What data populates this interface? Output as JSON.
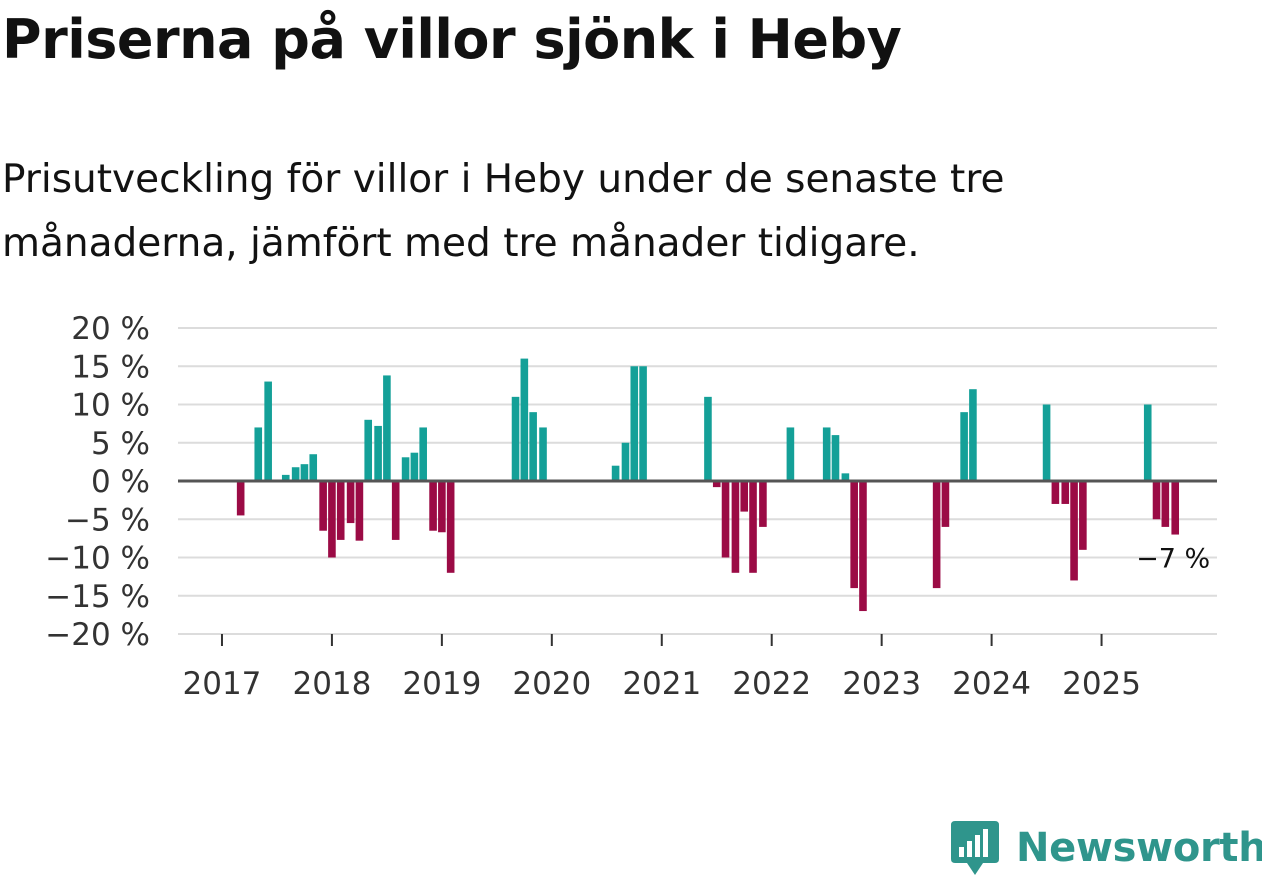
{
  "title": "Priserna på villor sjönk i Heby",
  "subtitle": "Prisutveckling för villor i Heby under de senaste tre månaderna, jämfört med tre månader tidigare.",
  "brand": {
    "name": "Newsworthy"
  },
  "colors": {
    "positive": "#14a098",
    "negative": "#9b0b45",
    "grid": "#dcdcdc",
    "zero": "#555555"
  },
  "chart_data": {
    "type": "bar",
    "x_unit": "decimal year",
    "xlim": [
      2016.6,
      2026.05
    ],
    "ylim": [
      -20,
      20
    ],
    "yticks": [
      {
        "value": 20,
        "label": "20 %"
      },
      {
        "value": 15,
        "label": "15 %"
      },
      {
        "value": 10,
        "label": "10 %"
      },
      {
        "value": 5,
        "label": "5 %"
      },
      {
        "value": 0,
        "label": "0 %"
      },
      {
        "value": -5,
        "label": "−5 %"
      },
      {
        "value": -10,
        "label": "−10 %"
      },
      {
        "value": -15,
        "label": "−15 %"
      },
      {
        "value": -20,
        "label": "−20 %"
      }
    ],
    "xticks": [
      {
        "value": 2017,
        "label": "2017"
      },
      {
        "value": 2018,
        "label": "2018"
      },
      {
        "value": 2019,
        "label": "2019"
      },
      {
        "value": 2020,
        "label": "2020"
      },
      {
        "value": 2021,
        "label": "2021"
      },
      {
        "value": 2022,
        "label": "2022"
      },
      {
        "value": 2023,
        "label": "2023"
      },
      {
        "value": 2024,
        "label": "2024"
      },
      {
        "value": 2025,
        "label": "2025"
      }
    ],
    "series": [
      {
        "name": "Prisutveckling",
        "points": [
          {
            "x": 2017.17,
            "y": -4.5
          },
          {
            "x": 2017.33,
            "y": 7
          },
          {
            "x": 2017.42,
            "y": 13
          },
          {
            "x": 2017.58,
            "y": 0.8
          },
          {
            "x": 2017.67,
            "y": 1.8
          },
          {
            "x": 2017.75,
            "y": 2.2
          },
          {
            "x": 2017.83,
            "y": 3.5
          },
          {
            "x": 2017.92,
            "y": -6.5
          },
          {
            "x": 2018.0,
            "y": -10
          },
          {
            "x": 2018.08,
            "y": -7.7
          },
          {
            "x": 2018.17,
            "y": -5.5
          },
          {
            "x": 2018.25,
            "y": -7.8
          },
          {
            "x": 2018.33,
            "y": 8
          },
          {
            "x": 2018.42,
            "y": 7.2
          },
          {
            "x": 2018.5,
            "y": 13.8
          },
          {
            "x": 2018.58,
            "y": -7.7
          },
          {
            "x": 2018.67,
            "y": 3.1
          },
          {
            "x": 2018.75,
            "y": 3.7
          },
          {
            "x": 2018.83,
            "y": 7
          },
          {
            "x": 2018.92,
            "y": -6.5
          },
          {
            "x": 2019.0,
            "y": -6.7
          },
          {
            "x": 2019.08,
            "y": -12
          },
          {
            "x": 2019.67,
            "y": 11
          },
          {
            "x": 2019.75,
            "y": 16
          },
          {
            "x": 2019.83,
            "y": 9
          },
          {
            "x": 2019.92,
            "y": 7
          },
          {
            "x": 2020.58,
            "y": 2
          },
          {
            "x": 2020.67,
            "y": 5
          },
          {
            "x": 2020.75,
            "y": 15
          },
          {
            "x": 2020.83,
            "y": 15
          },
          {
            "x": 2021.42,
            "y": 11
          },
          {
            "x": 2021.5,
            "y": -0.8
          },
          {
            "x": 2021.58,
            "y": -10
          },
          {
            "x": 2021.67,
            "y": -12
          },
          {
            "x": 2021.75,
            "y": -4
          },
          {
            "x": 2021.83,
            "y": -12
          },
          {
            "x": 2021.92,
            "y": -6
          },
          {
            "x": 2022.17,
            "y": 7
          },
          {
            "x": 2022.5,
            "y": 7
          },
          {
            "x": 2022.58,
            "y": 6
          },
          {
            "x": 2022.67,
            "y": 1
          },
          {
            "x": 2022.75,
            "y": -14
          },
          {
            "x": 2022.83,
            "y": -17
          },
          {
            "x": 2023.5,
            "y": -14
          },
          {
            "x": 2023.58,
            "y": -6
          },
          {
            "x": 2023.75,
            "y": 9
          },
          {
            "x": 2023.83,
            "y": 12
          },
          {
            "x": 2024.5,
            "y": 10
          },
          {
            "x": 2024.58,
            "y": -3
          },
          {
            "x": 2024.67,
            "y": -3
          },
          {
            "x": 2024.75,
            "y": -13
          },
          {
            "x": 2024.83,
            "y": -9
          },
          {
            "x": 2025.42,
            "y": 10
          },
          {
            "x": 2025.5,
            "y": -5
          },
          {
            "x": 2025.58,
            "y": -6
          },
          {
            "x": 2025.67,
            "y": -7
          }
        ]
      }
    ],
    "annotation": {
      "text": "−7 %",
      "x": 2025.67,
      "y": -7
    }
  }
}
